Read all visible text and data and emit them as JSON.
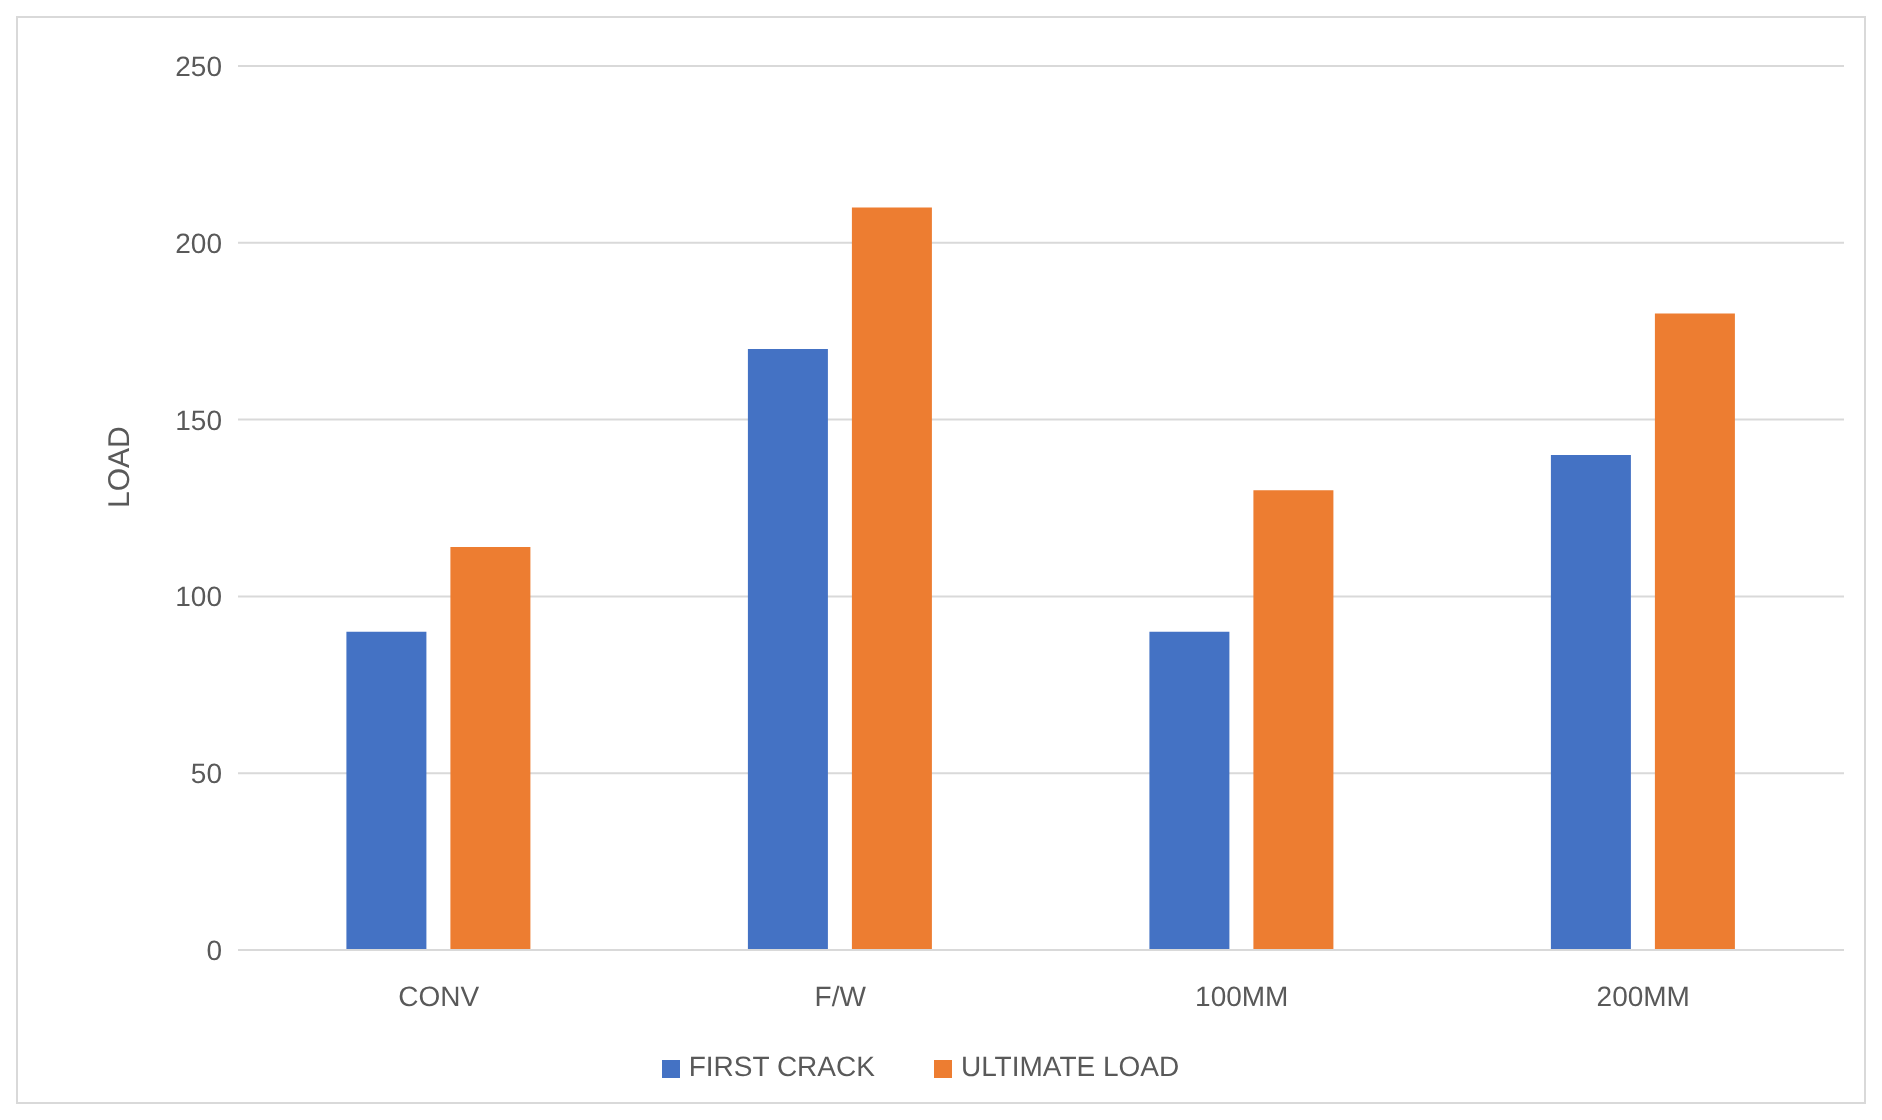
{
  "chart_data": {
    "type": "bar",
    "ylabel": "LOAD",
    "categories": [
      "CONV",
      "F/W",
      "100MM",
      "200MM"
    ],
    "series": [
      {
        "name": "FIRST CRACK",
        "color": "#4472c4",
        "values": [
          90,
          170,
          90,
          140
        ]
      },
      {
        "name": "ULTIMATE LOAD",
        "color": "#ed7d31",
        "values": [
          114,
          210,
          130,
          180
        ]
      }
    ],
    "ylim": [
      0,
      250
    ],
    "yticks": [
      0,
      50,
      100,
      150,
      200,
      250
    ],
    "grid": "y",
    "legend": "bottom"
  }
}
